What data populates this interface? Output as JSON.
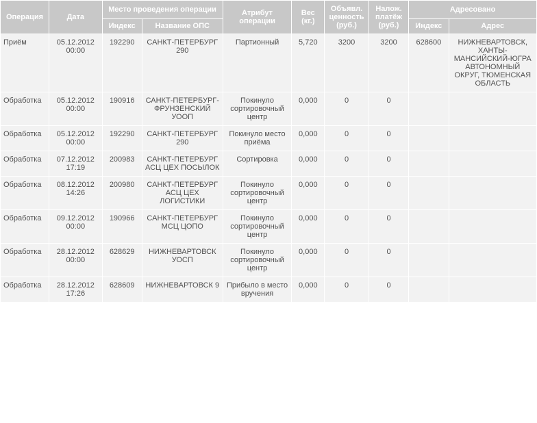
{
  "colors": {
    "header_bg": "#c8c8c8",
    "header_text": "#ffffff",
    "cell_bg": "#f2f2f2",
    "cell_text": "#505050",
    "spacing_bg": "#ffffff"
  },
  "headers": {
    "operation": "Операция",
    "date": "Дата",
    "place": "Место проведения операции",
    "place_index": "Индекс",
    "place_name": "Название ОПС",
    "attribute": "Атрибут операции",
    "weight": "Вес (кг.)",
    "declared_value": "Объявл. ценность (руб.)",
    "cod": "Налож. платёж (руб.)",
    "addressed": "Адресовано",
    "addr_index": "Индекс",
    "addr_address": "Адрес"
  },
  "rows": [
    {
      "operation": "Приём",
      "date": "05.12.2012 00:00",
      "index": "192290",
      "ops_name": "САНКТ-ПЕТЕРБУРГ 290",
      "attribute": "Партионный",
      "weight": "5,720",
      "declared_value": "3200",
      "cod": "3200",
      "addr_index": "628600",
      "addr_address": "НИЖНЕВАРТОВСК, ХАНТЫ-МАНСИЙСКИЙ-ЮГРА АВТОНОМНЫЙ ОКРУГ, ТЮМЕНСКАЯ ОБЛАСТЬ"
    },
    {
      "operation": "Обработка",
      "date": "05.12.2012 00:00",
      "index": "190916",
      "ops_name": "САНКТ-ПЕТЕРБУРГ-ФРУНЗЕНСКИЙ УООП",
      "attribute": "Покинуло сортировочный центр",
      "weight": "0,000",
      "declared_value": "0",
      "cod": "0",
      "addr_index": "",
      "addr_address": ""
    },
    {
      "operation": "Обработка",
      "date": "05.12.2012 00:00",
      "index": "192290",
      "ops_name": "САНКТ-ПЕТЕРБУРГ 290",
      "attribute": "Покинуло место приёма",
      "weight": "0,000",
      "declared_value": "0",
      "cod": "0",
      "addr_index": "",
      "addr_address": ""
    },
    {
      "operation": "Обработка",
      "date": "07.12.2012 17:19",
      "index": "200983",
      "ops_name": "САНКТ-ПЕТЕРБУРГ АСЦ ЦЕХ ПОСЫЛОК",
      "attribute": "Сортировка",
      "weight": "0,000",
      "declared_value": "0",
      "cod": "0",
      "addr_index": "",
      "addr_address": ""
    },
    {
      "operation": "Обработка",
      "date": "08.12.2012 14:26",
      "index": "200980",
      "ops_name": "САНКТ-ПЕТЕРБУРГ АСЦ ЦЕХ ЛОГИСТИКИ",
      "attribute": "Покинуло сортировочный центр",
      "weight": "0,000",
      "declared_value": "0",
      "cod": "0",
      "addr_index": "",
      "addr_address": ""
    },
    {
      "operation": "Обработка",
      "date": "09.12.2012 00:00",
      "index": "190966",
      "ops_name": "САНКТ-ПЕТЕРБУРГ МСЦ ЦОПО",
      "attribute": "Покинуло сортировочный центр",
      "weight": "0,000",
      "declared_value": "0",
      "cod": "0",
      "addr_index": "",
      "addr_address": ""
    },
    {
      "operation": "Обработка",
      "date": "28.12.2012 00:00",
      "index": "628629",
      "ops_name": "НИЖНЕВАРТОВСК УОСП",
      "attribute": "Покинуло сортировочный центр",
      "weight": "0,000",
      "declared_value": "0",
      "cod": "0",
      "addr_index": "",
      "addr_address": ""
    },
    {
      "operation": "Обработка",
      "date": "28.12.2012 17:26",
      "index": "628609",
      "ops_name": "НИЖНЕВАРТОВСК 9",
      "attribute": "Прибыло в место вручения",
      "weight": "0,000",
      "declared_value": "0",
      "cod": "0",
      "addr_index": "",
      "addr_address": ""
    }
  ]
}
